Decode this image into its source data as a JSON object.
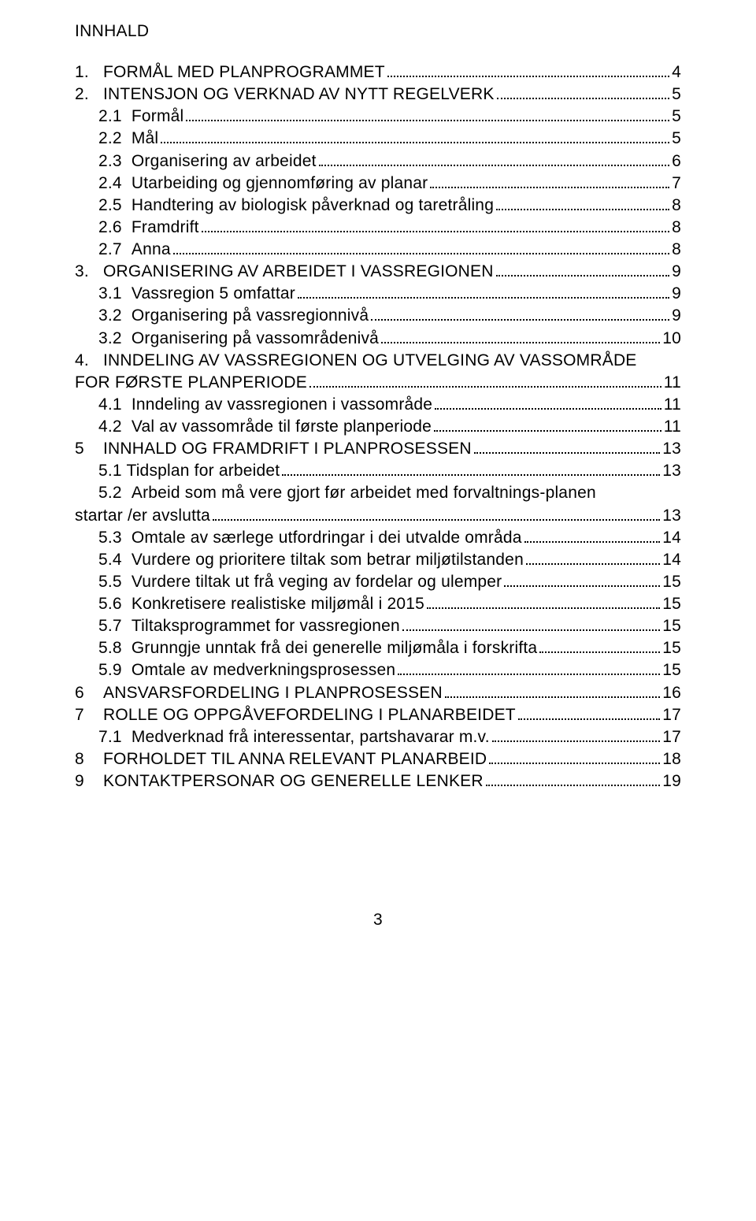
{
  "heading": "INNHALD",
  "page_number": "3",
  "toc": [
    {
      "label": "1.   FORMÅL MED PLANPROGRAMMET",
      "page": "4",
      "indent": 0
    },
    {
      "label": "2.   INTENSJON OG VERKNAD AV NYTT REGELVERK",
      "page": "5",
      "indent": 0
    },
    {
      "label": "2.1  Formål",
      "page": "5",
      "indent": 1
    },
    {
      "label": "2.2  Mål",
      "page": "5",
      "indent": 1
    },
    {
      "label": "2.3  Organisering av arbeidet",
      "page": "6",
      "indent": 1
    },
    {
      "label": "2.4  Utarbeiding og gjennomføring av planar",
      "page": "7",
      "indent": 1
    },
    {
      "label": "2.5  Handtering av biologisk påverknad og taretråling",
      "page": "8",
      "indent": 1
    },
    {
      "label": "2.6  Framdrift",
      "page": "8",
      "indent": 1
    },
    {
      "label": "2.7  Anna",
      "page": "8",
      "indent": 1
    },
    {
      "label": "3.   ORGANISERING AV ARBEIDET I VASSREGIONEN",
      "page": "9",
      "indent": 0
    },
    {
      "label": "3.1  Vassregion 5 omfattar",
      "page": "9",
      "indent": 1
    },
    {
      "label": "3.2  Organisering på vassregionnivå",
      "page": "9",
      "indent": 1
    },
    {
      "label": "3.2  Organisering på vassområdenivå",
      "page": "10",
      "indent": 1
    },
    {
      "label": "4.   INNDELING AV VASSREGIONEN OG UTVELGING AV VASSOMRÅDE",
      "label2": "FOR FØRSTE PLANPERIODE",
      "page": "11",
      "indent": 0,
      "wrap": true
    },
    {
      "label": "4.1  Inndeling av vassregionen i vassområde",
      "page": "11",
      "indent": 1
    },
    {
      "label": "4.2  Val av vassområde til første planperiode",
      "page": "11",
      "indent": 1
    },
    {
      "label": "5    INNHALD OG FRAMDRIFT I PLANPROSESSEN",
      "page": "13",
      "indent": 0
    },
    {
      "label": "5.1 Tidsplan for arbeidet",
      "page": "13",
      "indent": 1
    },
    {
      "label": "5.2  Arbeid som må vere gjort før arbeidet med forvaltnings-planen",
      "label2": "startar /er avslutta",
      "page": "13",
      "indent": 1,
      "wrap": true
    },
    {
      "label": "5.3  Omtale av særlege utfordringar i dei utvalde områda",
      "page": "14",
      "indent": 1
    },
    {
      "label": "5.4  Vurdere og prioritere tiltak som betrar miljøtilstanden",
      "page": "14",
      "indent": 1
    },
    {
      "label": "5.5  Vurdere tiltak ut frå veging av fordelar og ulemper",
      "page": "15",
      "indent": 1
    },
    {
      "label": "5.6  Konkretisere realistiske miljømål i 2015",
      "page": "15",
      "indent": 1
    },
    {
      "label": "5.7  Tiltaksprogrammet for vassregionen",
      "page": "15",
      "indent": 1
    },
    {
      "label": "5.8  Grunngje unntak frå dei generelle miljømåla i forskrifta",
      "page": "15",
      "indent": 1
    },
    {
      "label": "5.9  Omtale av medverkningsprosessen",
      "page": "15",
      "indent": 1
    },
    {
      "label": "6    ANSVARSFORDELING I PLANPROSESSEN",
      "page": "16",
      "indent": 0
    },
    {
      "label": "7    ROLLE OG OPPGÅVEFORDELING I PLANARBEIDET",
      "page": "17",
      "indent": 0
    },
    {
      "label": "7.1  Medverknad frå interessentar, partshavarar m.v.",
      "page": "17",
      "indent": 1
    },
    {
      "label": "8    FORHOLDET TIL ANNA RELEVANT PLANARBEID",
      "page": "18",
      "indent": 0
    },
    {
      "label": "9    KONTAKTPERSONAR OG GENERELLE LENKER",
      "page": "19",
      "indent": 0
    }
  ]
}
